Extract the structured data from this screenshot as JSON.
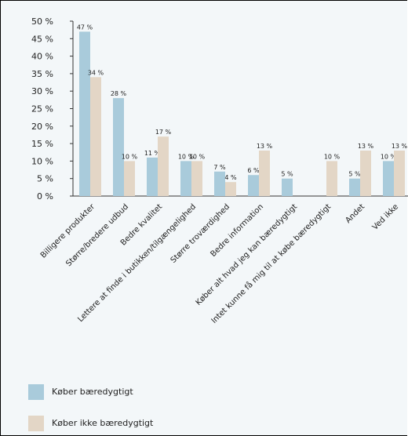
{
  "chart_data": {
    "type": "bar",
    "categories": [
      "Billigere produkter",
      "Større/bredere udbud",
      "Bedre kvalitet",
      "Lettere at finde i butikken/tilgængelighed",
      "Større troværdighed",
      "Bedre information",
      "Køber alt hvad jeg kan bæredygtigt",
      "Intet kunne få mig til at købe bæredygtigt",
      "Andet",
      "Ved ikke"
    ],
    "series": [
      {
        "name": "Køber bæredygtigt",
        "values": [
          47,
          28,
          11,
          10,
          7,
          6,
          5,
          null,
          5,
          10
        ],
        "labels": [
          "47 %",
          "28 %",
          "11 %",
          "10 %",
          "7 %",
          "6 %",
          "5 %",
          "",
          "5 %",
          "10 %"
        ]
      },
      {
        "name": "Køber ikke bæredygtigt",
        "values": [
          34,
          10,
          17,
          10,
          4,
          13,
          null,
          10,
          13,
          13
        ],
        "labels": [
          "34 %",
          "10 %",
          "17 %",
          "10 %",
          "4 %",
          "13 %",
          "",
          "10 %",
          "13 %",
          "13 %"
        ]
      }
    ],
    "colors": [
      "#a9cbdb",
      "#e3d6c6"
    ],
    "ylim": [
      0,
      50
    ],
    "yticks": [
      "0 %",
      "5 %",
      "10 %",
      "15 %",
      "20 %",
      "25 %",
      "30 %",
      "35 %",
      "40 %",
      "45 %",
      "50 %"
    ],
    "grid": false,
    "legend_position": "bottom-left"
  },
  "legend": [
    {
      "label": "Køber bæredygtigt",
      "color": "#a9cbdb"
    },
    {
      "label": "Køber ikke bæredygtigt",
      "color": "#e3d6c6"
    }
  ]
}
